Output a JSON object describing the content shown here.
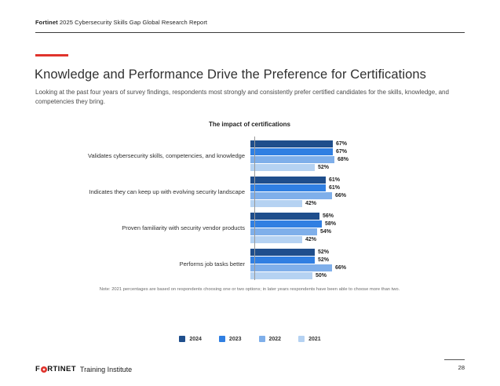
{
  "header": {
    "brand": "Fortinet",
    "rest": " 2025 Cybersecurity Skills Gap Global Research Report"
  },
  "page": {
    "title": "Knowledge and Performance Drive the Preference for Certifications",
    "subtitle": "Looking at the past four years of survey findings, respondents most strongly and consistently prefer certified candidates for the skills, knowledge, and competencies they bring."
  },
  "chart_data": {
    "type": "bar",
    "orientation": "horizontal",
    "title": "The impact of certifications",
    "categories": [
      "Validates cybersecurity skills, competencies, and knowledge",
      "Indicates they can keep up with evolving security landscape",
      "Proven familiarity with security vendor products",
      "Performs job tasks better"
    ],
    "series": [
      {
        "name": "2024",
        "color": "#1F4E8C",
        "values": [
          67,
          61,
          56,
          52
        ]
      },
      {
        "name": "2023",
        "color": "#307FE2",
        "values": [
          67,
          61,
          58,
          52
        ]
      },
      {
        "name": "2022",
        "color": "#7FAFEA",
        "values": [
          68,
          66,
          54,
          66
        ]
      },
      {
        "name": "2021",
        "color": "#B5D2F2",
        "values": [
          52,
          42,
          42,
          50
        ]
      }
    ],
    "value_suffix": "%",
    "xlim": [
      0,
      100
    ],
    "grid": false,
    "legend_position": "bottom",
    "note": "Note: 2021 percentages are based on respondents choosing one or two options; in later years respondents have been able to choose more than two."
  },
  "footer": {
    "logo_left": "F",
    "logo_right": "RTINET",
    "label": "Training Institute",
    "page_number": "28"
  }
}
